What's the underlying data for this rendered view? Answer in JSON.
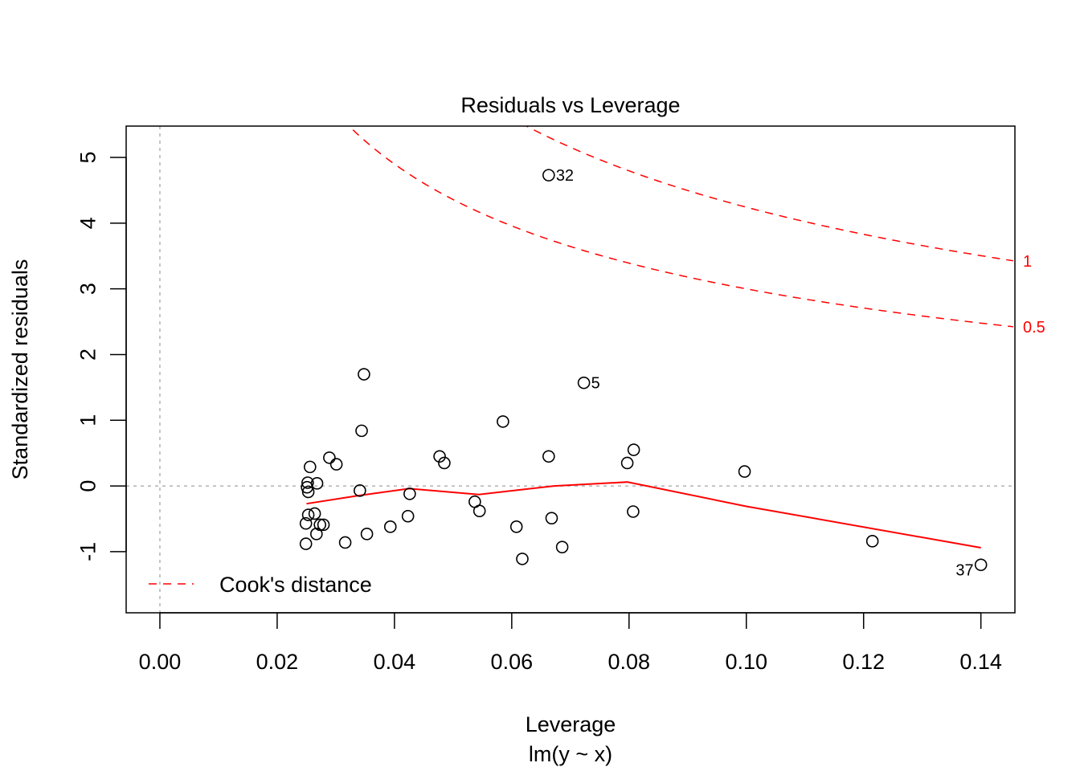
{
  "chart_data": {
    "type": "scatter",
    "title": "Residuals vs Leverage",
    "xlabel": "Leverage",
    "subtitle": "lm(y ~ x)",
    "ylabel": "Standardized residuals",
    "xlim": [
      -0.00575,
      0.1458
    ],
    "ylim": [
      -1.93,
      5.477
    ],
    "xticks": [
      0.0,
      0.02,
      0.04,
      0.06,
      0.08,
      0.1,
      0.12,
      0.14
    ],
    "xtick_labels": [
      "0.00",
      "0.02",
      "0.04",
      "0.06",
      "0.08",
      "0.10",
      "0.12",
      "0.14"
    ],
    "yticks": [
      -1,
      0,
      1,
      2,
      3,
      4,
      5
    ],
    "ytick_labels": [
      "-1",
      "0",
      "1",
      "2",
      "3",
      "4",
      "5"
    ],
    "grid": false,
    "reference_lines": {
      "h": 0,
      "v": 0,
      "color": "#b3b3b3"
    },
    "points": [
      {
        "x": 0.0663,
        "y": 4.73,
        "label": "32",
        "label_side": "right"
      },
      {
        "x": 0.0723,
        "y": 1.57,
        "label": "5",
        "label_side": "right"
      },
      {
        "x": 0.14,
        "y": -1.2,
        "label": "37",
        "label_side": "left"
      },
      {
        "x": 0.0348,
        "y": 1.7
      },
      {
        "x": 0.0344,
        "y": 0.84
      },
      {
        "x": 0.0585,
        "y": 0.98
      },
      {
        "x": 0.0256,
        "y": 0.29
      },
      {
        "x": 0.0289,
        "y": 0.43
      },
      {
        "x": 0.0301,
        "y": 0.33
      },
      {
        "x": 0.0252,
        "y": 0.05
      },
      {
        "x": 0.0251,
        "y": -0.02
      },
      {
        "x": 0.0253,
        "y": -0.09
      },
      {
        "x": 0.0268,
        "y": 0.04
      },
      {
        "x": 0.0341,
        "y": -0.07
      },
      {
        "x": 0.0426,
        "y": -0.12
      },
      {
        "x": 0.0477,
        "y": 0.45
      },
      {
        "x": 0.0485,
        "y": 0.35
      },
      {
        "x": 0.0253,
        "y": -0.44
      },
      {
        "x": 0.0264,
        "y": -0.42
      },
      {
        "x": 0.0249,
        "y": -0.57
      },
      {
        "x": 0.0273,
        "y": -0.59
      },
      {
        "x": 0.0279,
        "y": -0.59
      },
      {
        "x": 0.0267,
        "y": -0.73
      },
      {
        "x": 0.0249,
        "y": -0.88
      },
      {
        "x": 0.0316,
        "y": -0.86
      },
      {
        "x": 0.0353,
        "y": -0.73
      },
      {
        "x": 0.0393,
        "y": -0.62
      },
      {
        "x": 0.0423,
        "y": -0.46
      },
      {
        "x": 0.0537,
        "y": -0.24
      },
      {
        "x": 0.0545,
        "y": -0.38
      },
      {
        "x": 0.0608,
        "y": -0.62
      },
      {
        "x": 0.0618,
        "y": -1.11
      },
      {
        "x": 0.0668,
        "y": -0.49
      },
      {
        "x": 0.0686,
        "y": -0.93
      },
      {
        "x": 0.0663,
        "y": 0.45
      },
      {
        "x": 0.0808,
        "y": 0.55
      },
      {
        "x": 0.0797,
        "y": 0.35
      },
      {
        "x": 0.0807,
        "y": -0.39
      },
      {
        "x": 0.0997,
        "y": 0.22
      },
      {
        "x": 0.1215,
        "y": -0.84
      }
    ],
    "smoother": {
      "color": "#ff0000",
      "x": [
        0.025,
        0.0336,
        0.0425,
        0.0544,
        0.0672,
        0.0797,
        0.1,
        0.14
      ],
      "y": [
        -0.27,
        -0.15,
        -0.04,
        -0.13,
        0.0,
        0.06,
        -0.31,
        -0.94
      ]
    },
    "cooks_distance": {
      "color": "#ff0000",
      "n_params": 2,
      "levels": [
        0.5,
        1
      ],
      "level_labels": [
        "0.5",
        "1"
      ]
    },
    "legend": {
      "position": "bottom-left",
      "entries": [
        {
          "label": "Cook's distance",
          "style": "dashed",
          "color": "#ff0000"
        }
      ]
    }
  }
}
